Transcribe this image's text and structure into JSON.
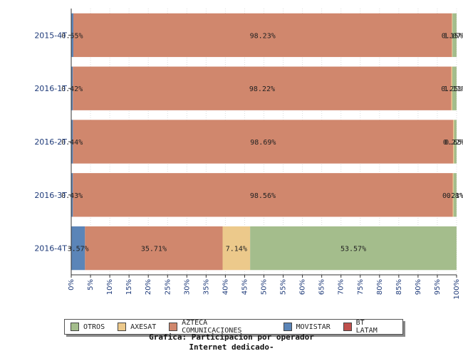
{
  "chart_data": {
    "type": "bar",
    "orientation": "horizontal-stacked-100",
    "categories": [
      "2015-4T",
      "2016-1T",
      "2016-2T",
      "2016-3T",
      "2016-4T"
    ],
    "series": [
      {
        "name": "MOVISTAR",
        "color": "#5b85b8",
        "values": [
          0.55,
          0.42,
          0.44,
          0.43,
          3.57
        ],
        "labels": [
          "0.55%",
          "0.42%",
          "0.44%",
          "0.43%",
          "3.57%"
        ]
      },
      {
        "name": "AZTECA COMUNICACIONES",
        "color": "#d0876d",
        "values": [
          98.23,
          98.22,
          98.69,
          98.56,
          35.71
        ],
        "labels": [
          "98.23%",
          "98.22%",
          "98.69%",
          "98.56%",
          "35.71%"
        ]
      },
      {
        "name": "AXESAT",
        "color": "#ecc98b",
        "values": [
          0.15,
          0.25,
          0.22,
          0.21,
          7.14
        ],
        "labels": [
          "0.15%",
          "0.25%",
          "0.22%",
          "0.21%",
          "7.14%"
        ]
      },
      {
        "name": "OTROS",
        "color": "#a4bd8c",
        "values": [
          1.07,
          1.11,
          0.65,
          0.8,
          53.57
        ],
        "labels": [
          "1.07%",
          "1.11%",
          "0.65%",
          "0.8%",
          "53.57%"
        ]
      }
    ],
    "ticks": [
      "0%",
      "5%",
      "10%",
      "15%",
      "20%",
      "25%",
      "30%",
      "35%",
      "40%",
      "45%",
      "50%",
      "55%",
      "60%",
      "65%",
      "70%",
      "75%",
      "80%",
      "85%",
      "90%",
      "95%",
      "100%"
    ],
    "xlim": [
      0,
      100
    ],
    "legend": [
      {
        "name": "OTROS",
        "color": "#a4bd8c"
      },
      {
        "name": "AXESAT",
        "color": "#ecc98b"
      },
      {
        "name": "AZTECA COMUNICACIONES",
        "color": "#d0876d"
      },
      {
        "name": "MOVISTAR",
        "color": "#5b85b8"
      },
      {
        "name": "BT LATAM",
        "color": "#c0504d"
      }
    ],
    "legend_position": "bottom",
    "grid": true
  },
  "caption": {
    "line1": "Grafica: Participacion por operador",
    "line2": "Internet dedicado-"
  }
}
